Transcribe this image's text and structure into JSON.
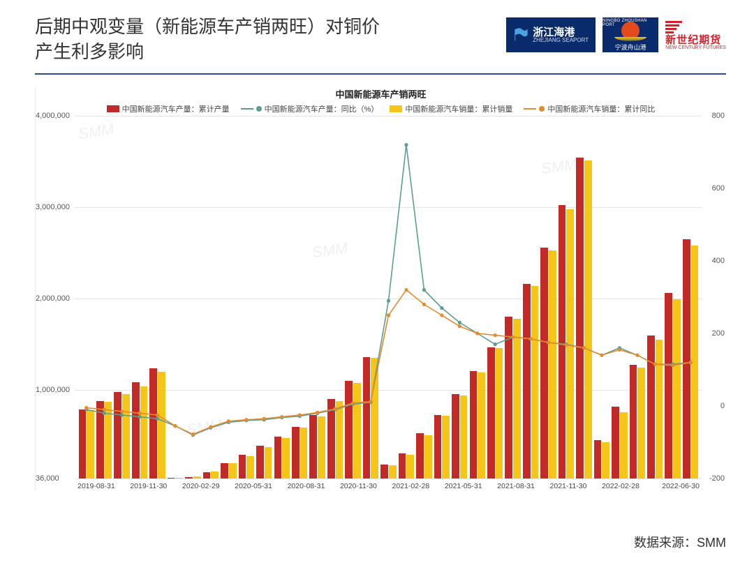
{
  "header": {
    "title_l1": "后期中观变量（新能源车产销两旺）对铜价",
    "title_l2": "产生利多影响",
    "logo1_cn": "浙江海港",
    "logo1_en": "ZHEJIANG SEAPORT",
    "logo2_top": "NINGBO ZHOUSHAN PORT",
    "logo2_cn": "宁波舟山港",
    "logo3_cn": "新世纪期货",
    "logo3_en": "NEW CENTURY FUTURES"
  },
  "chart": {
    "title": "中国新能源车产销两旺",
    "series": [
      {
        "key": "prod_vol",
        "label": "中国新能源汽车产量：累计产量",
        "type": "bar",
        "color": "#c22a28"
      },
      {
        "key": "prod_yoy",
        "label": "中国新能源汽车产量：同比（%）",
        "type": "line",
        "color": "#5a9e90"
      },
      {
        "key": "sale_vol",
        "label": "中国新能源汽车销量：累计销量",
        "type": "bar",
        "color": "#f5c518"
      },
      {
        "key": "sale_yoy",
        "label": "中国新能源汽车销量：累计同比",
        "type": "line",
        "color": "#e68a2e"
      }
    ],
    "yLeft": {
      "min": 36000,
      "max": 4000000,
      "ticks": [
        36000,
        1000000,
        2000000,
        3000000,
        4000000
      ],
      "labels": [
        "36,000",
        "1,000,000",
        "2,000,000",
        "3,000,000",
        "4,000,000"
      ]
    },
    "yRight": {
      "min": -200,
      "max": 800,
      "ticks": [
        -200,
        0,
        200,
        400,
        600,
        800
      ],
      "labels": [
        "-200",
        "0",
        "200",
        "400",
        "600",
        "800"
      ]
    },
    "xLabelsShow": [
      "2019-08-31",
      "",
      "",
      "2019-11-30",
      "",
      "",
      "2020-02-29",
      "",
      "",
      "2020-05-31",
      "",
      "",
      "2020-08-31",
      "",
      "",
      "2020-11-30",
      "",
      "",
      "2021-02-28",
      "",
      "",
      "2021-05-31",
      "",
      "",
      "2021-08-31",
      "",
      "",
      "2021-11-30",
      "",
      "",
      "2022-02-28",
      "",
      "",
      "",
      "2022-06-30"
    ],
    "data": [
      {
        "x": "2019-08-31",
        "prod": 790000,
        "sale": 780000,
        "pyoy": -10,
        "syoy": -5
      },
      {
        "x": "2019-09-30",
        "prod": 880000,
        "sale": 870000,
        "pyoy": -20,
        "syoy": -10
      },
      {
        "x": "2019-10-31",
        "prod": 980000,
        "sale": 960000,
        "pyoy": -25,
        "syoy": -15
      },
      {
        "x": "2019-11-30",
        "prod": 1090000,
        "sale": 1040000,
        "pyoy": -30,
        "syoy": -20
      },
      {
        "x": "2019-12-31",
        "prod": 1240000,
        "sale": 1200000,
        "pyoy": -35,
        "syoy": -25
      },
      {
        "x": "2020-01-31",
        "prod": 40000,
        "sale": 40000,
        "pyoy": -55,
        "syoy": -55
      },
      {
        "x": "2020-02-29",
        "prod": 50000,
        "sale": 55000,
        "pyoy": -80,
        "syoy": -78
      },
      {
        "x": "2020-03-31",
        "prod": 100000,
        "sale": 110000,
        "pyoy": -60,
        "syoy": -58
      },
      {
        "x": "2020-04-30",
        "prod": 200000,
        "sale": 200000,
        "pyoy": -45,
        "syoy": -42
      },
      {
        "x": "2020-05-31",
        "prod": 290000,
        "sale": 280000,
        "pyoy": -40,
        "syoy": -38
      },
      {
        "x": "2020-06-30",
        "prod": 390000,
        "sale": 380000,
        "pyoy": -38,
        "syoy": -35
      },
      {
        "x": "2020-07-31",
        "prod": 490000,
        "sale": 480000,
        "pyoy": -32,
        "syoy": -30
      },
      {
        "x": "2020-08-31",
        "prod": 600000,
        "sale": 590000,
        "pyoy": -28,
        "syoy": -25
      },
      {
        "x": "2020-09-30",
        "prod": 730000,
        "sale": 710000,
        "pyoy": -20,
        "syoy": -18
      },
      {
        "x": "2020-10-31",
        "prod": 900000,
        "sale": 880000,
        "pyoy": -10,
        "syoy": -8
      },
      {
        "x": "2020-11-30",
        "prod": 1100000,
        "sale": 1080000,
        "pyoy": 5,
        "syoy": 8
      },
      {
        "x": "2020-12-31",
        "prod": 1360000,
        "sale": 1350000,
        "pyoy": 10,
        "syoy": 12
      },
      {
        "x": "2021-01-31",
        "prod": 190000,
        "sale": 180000,
        "pyoy": 290,
        "syoy": 250
      },
      {
        "x": "2021-02-28",
        "prod": 310000,
        "sale": 290000,
        "pyoy": 720,
        "syoy": 320
      },
      {
        "x": "2021-03-31",
        "prod": 530000,
        "sale": 510000,
        "pyoy": 320,
        "syoy": 280
      },
      {
        "x": "2021-04-30",
        "prod": 730000,
        "sale": 720000,
        "pyoy": 270,
        "syoy": 250
      },
      {
        "x": "2021-05-31",
        "prod": 960000,
        "sale": 940000,
        "pyoy": 230,
        "syoy": 220
      },
      {
        "x": "2021-06-30",
        "prod": 1210000,
        "sale": 1190000,
        "pyoy": 200,
        "syoy": 200
      },
      {
        "x": "2021-07-31",
        "prod": 1470000,
        "sale": 1460000,
        "pyoy": 170,
        "syoy": 195
      },
      {
        "x": "2021-08-31",
        "prod": 1800000,
        "sale": 1780000,
        "pyoy": 190,
        "syoy": 190
      },
      {
        "x": "2021-09-30",
        "prod": 2160000,
        "sale": 2140000,
        "pyoy": 185,
        "syoy": 185
      },
      {
        "x": "2021-10-31",
        "prod": 2560000,
        "sale": 2530000,
        "pyoy": 175,
        "syoy": 175
      },
      {
        "x": "2021-11-30",
        "prod": 3020000,
        "sale": 2980000,
        "pyoy": 170,
        "syoy": 168
      },
      {
        "x": "2021-12-31",
        "prod": 3540000,
        "sale": 3510000,
        "pyoy": 160,
        "syoy": 160
      },
      {
        "x": "2022-01-31",
        "prod": 450000,
        "sale": 430000,
        "pyoy": 140,
        "syoy": 140
      },
      {
        "x": "2022-02-28",
        "prod": 820000,
        "sale": 760000,
        "pyoy": 160,
        "syoy": 155
      },
      {
        "x": "2022-03-31",
        "prod": 1280000,
        "sale": 1250000,
        "pyoy": 140,
        "syoy": 140
      },
      {
        "x": "2022-04-30",
        "prod": 1600000,
        "sale": 1550000,
        "pyoy": 115,
        "syoy": 115
      },
      {
        "x": "2022-05-31",
        "prod": 2060000,
        "sale": 1990000,
        "pyoy": 115,
        "syoy": 112
      },
      {
        "x": "2022-06-30",
        "prod": 2650000,
        "sale": 2580000,
        "pyoy": 120,
        "syoy": 120
      }
    ],
    "watermark_text": "SMM",
    "grid_color": "#e4e4e4",
    "bg": "#fdfdfd"
  },
  "source_label": "数据来源：SMM"
}
